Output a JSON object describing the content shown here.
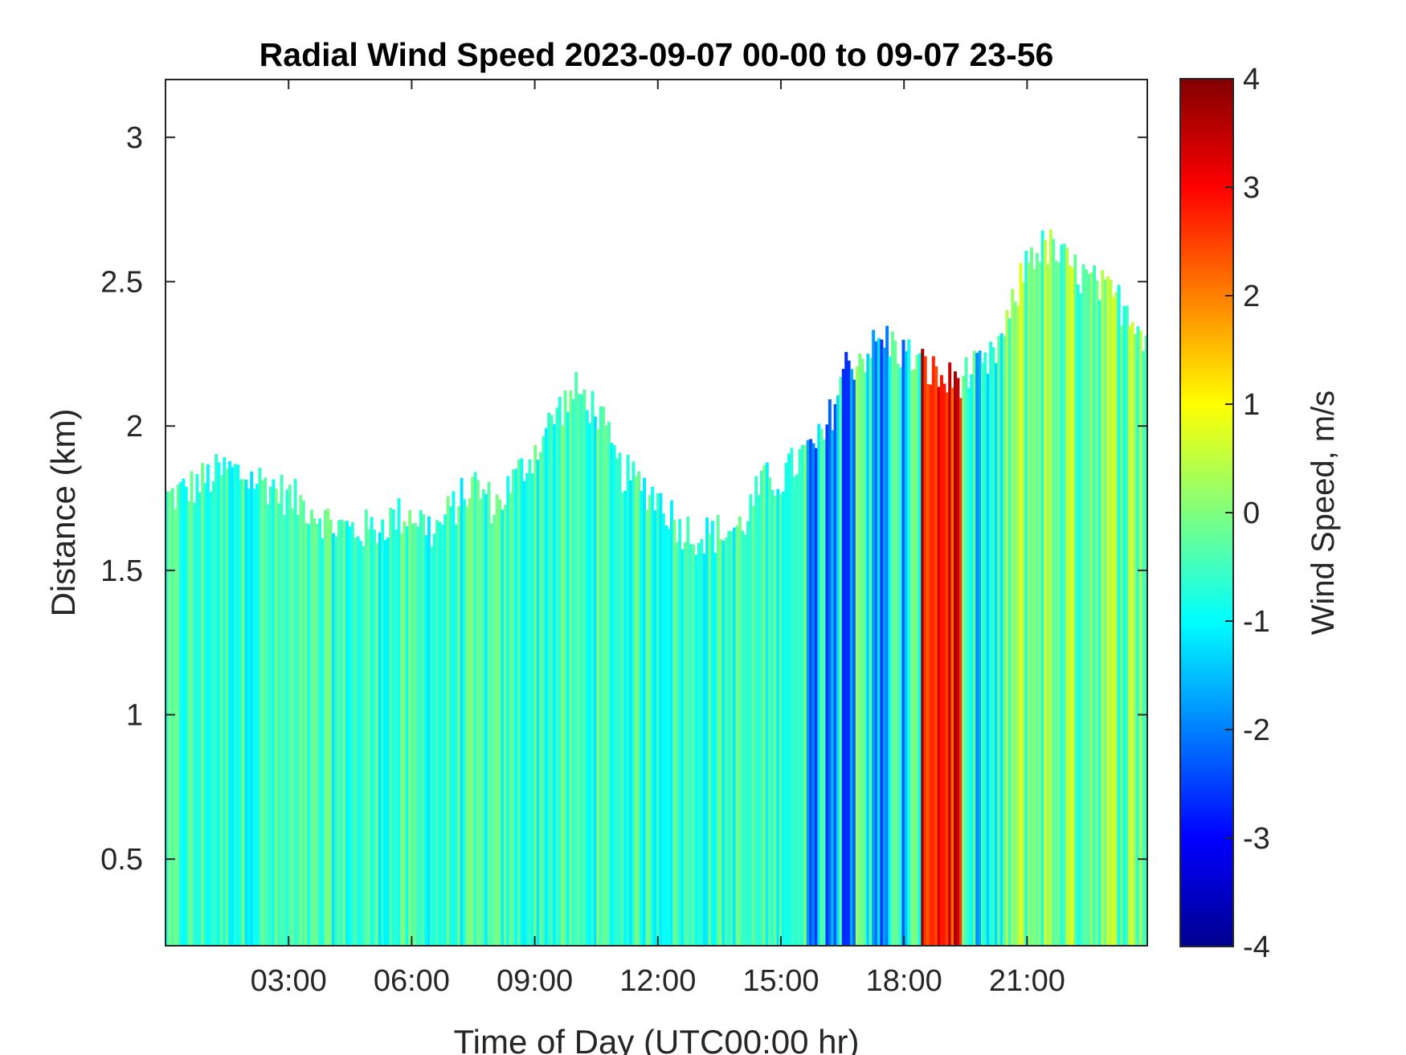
{
  "chart_data": {
    "type": "heatmap",
    "title": "Radial Wind Speed 2023-09-07 00-00 to 09-07 23-56",
    "xlabel": "Time of Day (UTC00:00 hr)",
    "ylabel": "Distance (km)",
    "colorbar_label": "Wind Speed, m/s",
    "colormap": "jet",
    "xlim": [
      0,
      23.93
    ],
    "ylim": [
      0.2,
      3.2
    ],
    "clim": [
      -4,
      4
    ],
    "x_ticks": [
      {
        "value": 3,
        "label": "03:00"
      },
      {
        "value": 6,
        "label": "06:00"
      },
      {
        "value": 9,
        "label": "09:00"
      },
      {
        "value": 12,
        "label": "12:00"
      },
      {
        "value": 15,
        "label": "15:00"
      },
      {
        "value": 18,
        "label": "18:00"
      },
      {
        "value": 21,
        "label": "21:00"
      }
    ],
    "y_ticks": [
      {
        "value": 0.5,
        "label": "0.5"
      },
      {
        "value": 1,
        "label": "1"
      },
      {
        "value": 1.5,
        "label": "1.5"
      },
      {
        "value": 2,
        "label": "2"
      },
      {
        "value": 2.5,
        "label": "2.5"
      },
      {
        "value": 3,
        "label": "3"
      }
    ],
    "colorbar_ticks": [
      {
        "value": 4,
        "label": "4"
      },
      {
        "value": 3,
        "label": "3"
      },
      {
        "value": 2,
        "label": "2"
      },
      {
        "value": 1,
        "label": "1"
      },
      {
        "value": 0,
        "label": "0"
      },
      {
        "value": -1,
        "label": "-1"
      },
      {
        "value": -2,
        "label": "-2"
      },
      {
        "value": -3,
        "label": "-3"
      },
      {
        "value": -4,
        "label": "-4"
      }
    ],
    "data_top_km_by_hour": {
      "hours": [
        0,
        0.5,
        1,
        1.5,
        2,
        2.5,
        3,
        3.5,
        4,
        4.5,
        5,
        5.5,
        6,
        6.5,
        7,
        7.5,
        8,
        8.5,
        9,
        9.5,
        10,
        10.5,
        11,
        11.5,
        12,
        12.5,
        13,
        13.5,
        14,
        14.5,
        15,
        15.5,
        16,
        16.5,
        17,
        17.5,
        18,
        18.5,
        19,
        19.5,
        20,
        20.5,
        21,
        21.5,
        22,
        22.5,
        23,
        23.5,
        23.93
      ],
      "top_km": [
        1.75,
        1.78,
        1.82,
        1.85,
        1.82,
        1.8,
        1.75,
        1.72,
        1.66,
        1.64,
        1.64,
        1.68,
        1.7,
        1.63,
        1.72,
        1.8,
        1.72,
        1.82,
        1.92,
        2.05,
        2.12,
        2.05,
        1.85,
        1.8,
        1.75,
        1.65,
        1.62,
        1.63,
        1.65,
        1.8,
        1.82,
        1.9,
        1.95,
        2.2,
        2.25,
        2.3,
        2.25,
        2.2,
        2.15,
        2.18,
        2.2,
        2.35,
        2.6,
        2.62,
        2.55,
        2.5,
        2.45,
        2.4,
        2.3
      ]
    },
    "wind_speed_regimes": [
      {
        "hours": [
          0,
          15
        ],
        "range_m_s": [
          -1.2,
          0.2
        ],
        "typical_m_s": -0.6
      },
      {
        "hours": [
          15.5,
          18.3
        ],
        "range_m_s": [
          -2.8,
          0.5
        ],
        "typical_m_s": -1.2
      },
      {
        "hours": [
          18.4,
          19.4
        ],
        "range_m_s": [
          1.5,
          3.8
        ],
        "typical_m_s": 3.0
      },
      {
        "hours": [
          19.4,
          20.5
        ],
        "range_m_s": [
          -2.0,
          0.0
        ],
        "typical_m_s": -1.0
      },
      {
        "hours": [
          20.5,
          23.93
        ],
        "range_m_s": [
          -1.0,
          1.0
        ],
        "typical_m_s": 0.0
      }
    ]
  }
}
